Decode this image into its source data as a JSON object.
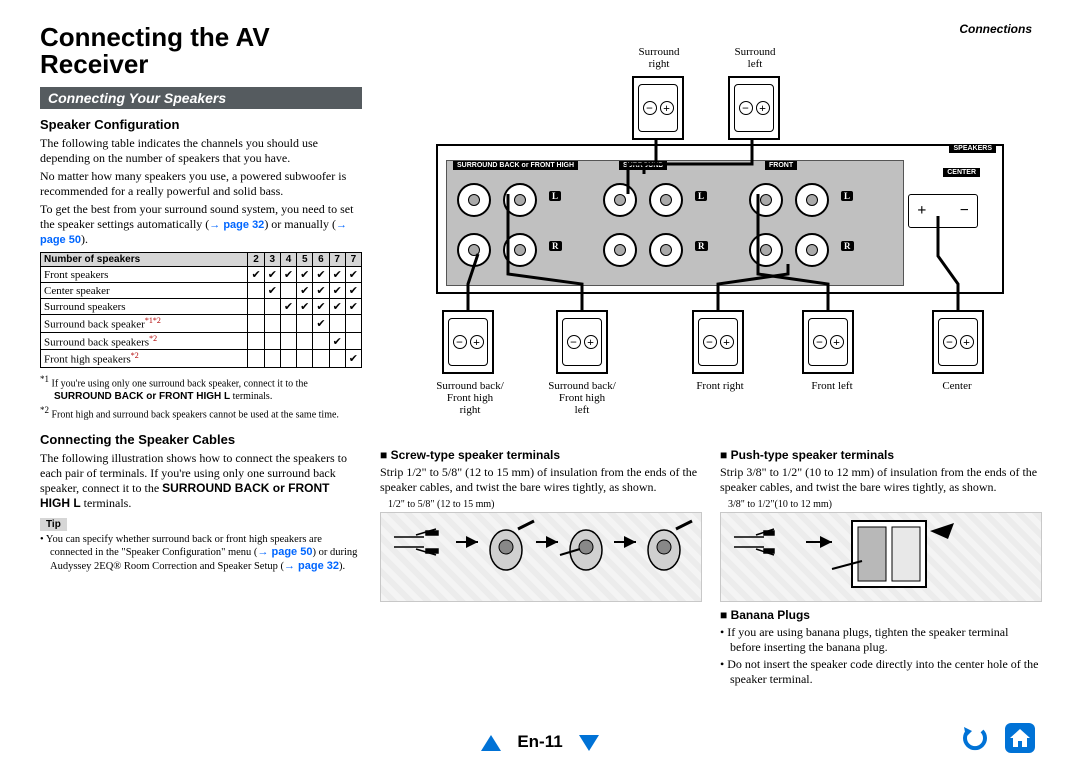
{
  "header": {
    "breadcrumb": "Connections"
  },
  "title": "Connecting the AV Receiver",
  "section_bar": "Connecting Your Speakers",
  "speaker_config": {
    "heading": "Speaker Configuration",
    "p1": "The following table indicates the channels you should use depending on the number of speakers that you have.",
    "p2": "No matter how many speakers you use, a powered subwoofer is recommended for a really powerful and solid bass.",
    "p3a": "To get the best from your surround sound system, you need to set the speaker settings automatically (",
    "p3_link1": "→ page 32",
    "p3b": ") or manually (",
    "p3_link2": "→ page 50",
    "p3c": ")."
  },
  "table": {
    "header_label": "Number of speakers",
    "cols": [
      "2",
      "3",
      "4",
      "5",
      "6",
      "7",
      "7"
    ],
    "rows": [
      {
        "label": "Front speakers",
        "sup": "",
        "cells": [
          "✔",
          "✔",
          "✔",
          "✔",
          "✔",
          "✔",
          "✔"
        ]
      },
      {
        "label": "Center speaker",
        "sup": "",
        "cells": [
          "",
          "✔",
          "",
          "✔",
          "✔",
          "✔",
          "✔"
        ]
      },
      {
        "label": "Surround speakers",
        "sup": "",
        "cells": [
          "",
          "",
          "✔",
          "✔",
          "✔",
          "✔",
          "✔"
        ]
      },
      {
        "label": "Surround back speaker",
        "sup": "*1*2",
        "cells": [
          "",
          "",
          "",
          "",
          "✔",
          "",
          ""
        ]
      },
      {
        "label": "Surround back speakers",
        "sup": "*2",
        "cells": [
          "",
          "",
          "",
          "",
          "",
          "✔",
          ""
        ]
      },
      {
        "label": "Front high speakers",
        "sup": "*2",
        "cells": [
          "",
          "",
          "",
          "",
          "",
          "",
          "✔"
        ]
      }
    ],
    "footnote1_marker": "*1",
    "footnote1": "If you're using only one surround back speaker, connect it to the SURROUND BACK or FRONT HIGH L terminals.",
    "footnote1_bold": "SURROUND BACK or FRONT HIGH L",
    "footnote2_marker": "*2",
    "footnote2": "Front high and surround back speakers cannot be used at the same time."
  },
  "cables": {
    "heading": "Connecting the Speaker Cables",
    "p1a": "The following illustration shows how to connect the speakers to each pair of terminals. If you're using only one surround back speaker, connect it to the ",
    "p1_bold": "SURROUND BACK or FRONT HIGH L",
    "p1b": " terminals.",
    "tip_label": "Tip",
    "tip_a": "You can specify whether surround back or front high speakers are connected in the \"Speaker Configuration\" menu (",
    "tip_link1": "→ page 50",
    "tip_b": ") or during Audyssey 2EQ® Room Correction and Speaker Setup (",
    "tip_link2": "→ page 32",
    "tip_c": ")."
  },
  "diagram_labels": {
    "sr_right": "Surround right",
    "sr_left": "Surround left",
    "sb_right": "Surround back/ Front high right",
    "sb_left": "Surround back/ Front high left",
    "front_right": "Front right",
    "front_left": "Front left",
    "center": "Center",
    "panel_tag1": "SURROUND BACK or FRONT HIGH",
    "panel_tag2": "SURROUND",
    "panel_tag3": "FRONT",
    "panel_tag4": "CENTER",
    "panel_tag5": "SPEAKERS"
  },
  "screw": {
    "heading": "Screw-type speaker terminals",
    "p": "Strip 1/2\" to 5/8\" (12 to 15 mm) of insulation from the ends of the speaker cables, and twist the bare wires tightly, as shown.",
    "dim": "1/2\" to 5/8\" (12 to 15 mm)"
  },
  "push": {
    "heading": "Push-type speaker terminals",
    "p": "Strip 3/8\" to 1/2\" (10 to 12 mm) of insulation from the ends of the speaker cables, and twist the bare wires tightly, as shown.",
    "dim": "3/8\" to 1/2\"(10 to 12 mm)"
  },
  "banana": {
    "heading": "Banana Plugs",
    "b1": "If you are using banana plugs, tighten the speaker terminal before inserting the banana plug.",
    "b2": "Do not insert the speaker code directly into the center hole of the speaker terminal."
  },
  "page_num": "En-11",
  "colors": {
    "bar_bg": "#555b5f",
    "link": "#0066ff",
    "nav_blue": "#0072d6",
    "table_header_bg": "#d6d6d6",
    "sup_red": "#b00000"
  }
}
